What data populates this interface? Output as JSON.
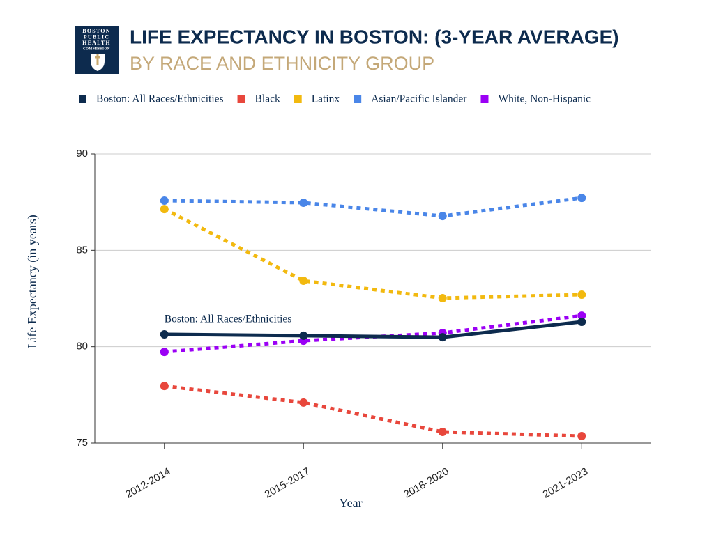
{
  "logo": [
    "BOSTON",
    "PUBLIC",
    "HEALTH",
    "COMMISSION"
  ],
  "chart_data": {
    "type": "line",
    "title": "LIFE EXPECTANCY IN BOSTON: (3-YEAR AVERAGE)",
    "subtitle": "BY RACE AND ETHNICITY GROUP",
    "x_label": "Year",
    "y_label": "Life Expectancy (in years)",
    "annotation": "Boston: All Races/Ethnicities",
    "categories": [
      "2012-2014",
      "2015-2017",
      "2018-2020",
      "2021-2023"
    ],
    "series": [
      {
        "name": "Boston: All Races/Ethnicities",
        "color": "#0d2b4e",
        "style": "solid",
        "values": [
          80.64,
          80.57,
          80.49,
          81.29
        ]
      },
      {
        "name": "Black",
        "color": "#e8473c",
        "style": "dotted",
        "values": [
          77.96,
          77.1,
          75.58,
          75.36
        ]
      },
      {
        "name": "Latinx",
        "color": "#f2b90f",
        "style": "dotted",
        "values": [
          87.14,
          83.42,
          82.52,
          82.7
        ]
      },
      {
        "name": "Asian/Pacific Islander",
        "color": "#4a86e8",
        "style": "dotted",
        "values": [
          87.58,
          87.47,
          86.78,
          87.72
        ]
      },
      {
        "name": "White, Non-Hispanic",
        "color": "#9b00f5",
        "style": "dotted",
        "values": [
          79.73,
          80.31,
          80.71,
          81.61
        ]
      }
    ],
    "ylim": [
      75,
      90
    ],
    "yticks": [
      75,
      80,
      85,
      90
    ],
    "grid": true
  }
}
